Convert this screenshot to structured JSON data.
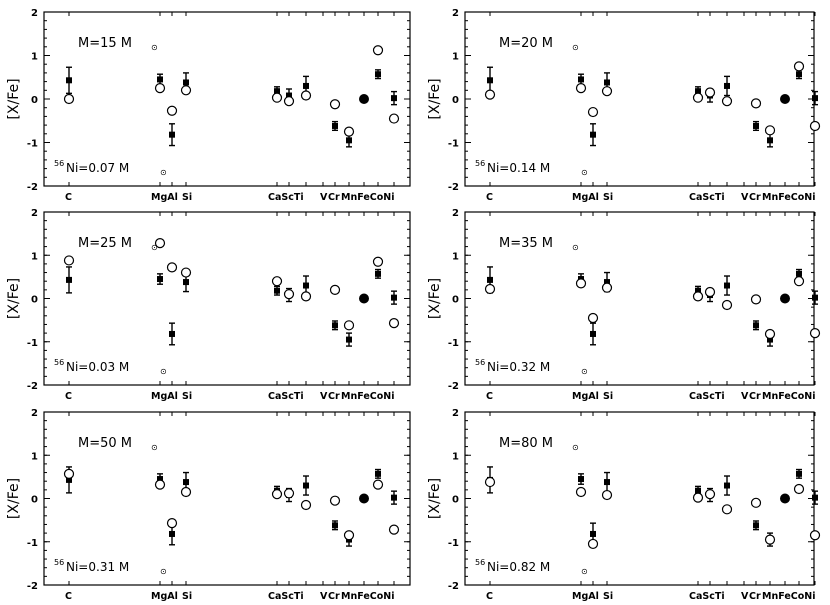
{
  "chart_data": [
    {
      "type": "scatter",
      "mass_label": "M=15 M",
      "ni_label": "Ni=0.07 M",
      "ni_superscript": "56",
      "sun_symbol": "⊙",
      "ylabel": "[X/Fe]",
      "ylim": [
        -2,
        2
      ],
      "yticks": [
        "2",
        "1",
        "0",
        "-1",
        "-2"
      ],
      "elements": [
        "C",
        "Mg",
        "Al",
        "Si",
        "Ca",
        "Sc",
        "Ti",
        "V",
        "Cr",
        "Mn",
        "Fe",
        "Co",
        "Ni"
      ],
      "element_labels": [
        "C",
        "MgAl",
        "Si",
        "CaScTi",
        "V",
        "Cr",
        "MnFeCoNi"
      ],
      "observed": [
        {
          "el": "C",
          "y": 0.43,
          "err": 0.3
        },
        {
          "el": "Mg",
          "y": 0.45,
          "err": 0.12
        },
        {
          "el": "Al",
          "y": -0.82,
          "err": 0.25
        },
        {
          "el": "Si",
          "y": 0.38,
          "err": 0.22
        },
        {
          "el": "Ca",
          "y": 0.18,
          "err": 0.1
        },
        {
          "el": "Sc",
          "y": 0.08,
          "err": 0.15
        },
        {
          "el": "Ti",
          "y": 0.3,
          "err": 0.22
        },
        {
          "el": "Cr",
          "y": -0.62,
          "err": 0.1
        },
        {
          "el": "Mn",
          "y": -0.95,
          "err": 0.15
        },
        {
          "el": "Co",
          "y": 0.57,
          "err": 0.1
        },
        {
          "el": "Ni",
          "y": 0.02,
          "err": 0.15
        }
      ],
      "model": [
        {
          "el": "C",
          "y": 0.0
        },
        {
          "el": "Mg",
          "y": 0.25
        },
        {
          "el": "Al",
          "y": -0.27
        },
        {
          "el": "Si",
          "y": 0.2
        },
        {
          "el": "Ca",
          "y": 0.03
        },
        {
          "el": "Sc",
          "y": -0.05
        },
        {
          "el": "Ti",
          "y": 0.08
        },
        {
          "el": "Cr",
          "y": -0.12
        },
        {
          "el": "Mn",
          "y": -0.75
        },
        {
          "el": "Co",
          "y": 1.12
        },
        {
          "el": "Ni",
          "y": -0.45
        }
      ],
      "reference": {
        "el": "Fe",
        "y": 0.0
      }
    },
    {
      "type": "scatter",
      "mass_label": "M=20 M",
      "ni_label": "Ni=0.14 M",
      "ni_superscript": "56",
      "sun_symbol": "⊙",
      "ylabel": "[X/Fe]",
      "ylim": [
        -2,
        2
      ],
      "yticks": [
        "2",
        "1",
        "0",
        "-1",
        "-2"
      ],
      "elements": [
        "C",
        "Mg",
        "Al",
        "Si",
        "Ca",
        "Sc",
        "Ti",
        "V",
        "Cr",
        "Mn",
        "Fe",
        "Co",
        "Ni"
      ],
      "element_labels": [
        "C",
        "MgAl",
        "Si",
        "CaScTi",
        "V",
        "Cr",
        "MnFeCoNi"
      ],
      "observed": [
        {
          "el": "C",
          "y": 0.43,
          "err": 0.3
        },
        {
          "el": "Mg",
          "y": 0.45,
          "err": 0.12
        },
        {
          "el": "Al",
          "y": -0.82,
          "err": 0.25
        },
        {
          "el": "Si",
          "y": 0.38,
          "err": 0.22
        },
        {
          "el": "Ca",
          "y": 0.18,
          "err": 0.1
        },
        {
          "el": "Sc",
          "y": 0.08,
          "err": 0.15
        },
        {
          "el": "Ti",
          "y": 0.3,
          "err": 0.22
        },
        {
          "el": "Cr",
          "y": -0.62,
          "err": 0.1
        },
        {
          "el": "Mn",
          "y": -0.95,
          "err": 0.15
        },
        {
          "el": "Co",
          "y": 0.57,
          "err": 0.1
        },
        {
          "el": "Ni",
          "y": 0.02,
          "err": 0.15
        }
      ],
      "model": [
        {
          "el": "C",
          "y": 0.1
        },
        {
          "el": "Mg",
          "y": 0.25
        },
        {
          "el": "Al",
          "y": -0.3
        },
        {
          "el": "Si",
          "y": 0.18
        },
        {
          "el": "Ca",
          "y": 0.03
        },
        {
          "el": "Sc",
          "y": 0.15
        },
        {
          "el": "Ti",
          "y": -0.05
        },
        {
          "el": "Cr",
          "y": -0.1
        },
        {
          "el": "Mn",
          "y": -0.72
        },
        {
          "el": "Co",
          "y": 0.75
        },
        {
          "el": "Ni",
          "y": -0.62
        }
      ],
      "reference": {
        "el": "Fe",
        "y": 0.0
      }
    },
    {
      "type": "scatter",
      "mass_label": "M=25 M",
      "ni_label": "Ni=0.03 M",
      "ni_superscript": "56",
      "sun_symbol": "⊙",
      "ylabel": "[X/Fe]",
      "ylim": [
        -2,
        2
      ],
      "yticks": [
        "2",
        "1",
        "0",
        "-1",
        "-2"
      ],
      "elements": [
        "C",
        "Mg",
        "Al",
        "Si",
        "Ca",
        "Sc",
        "Ti",
        "V",
        "Cr",
        "Mn",
        "Fe",
        "Co",
        "Ni"
      ],
      "element_labels": [
        "C",
        "MgAl",
        "Si",
        "CaScTi",
        "V",
        "Cr",
        "MnFeCoNi"
      ],
      "observed": [
        {
          "el": "C",
          "y": 0.43,
          "err": 0.3
        },
        {
          "el": "Mg",
          "y": 0.45,
          "err": 0.12
        },
        {
          "el": "Al",
          "y": -0.82,
          "err": 0.25
        },
        {
          "el": "Si",
          "y": 0.38,
          "err": 0.22
        },
        {
          "el": "Ca",
          "y": 0.18,
          "err": 0.1
        },
        {
          "el": "Sc",
          "y": 0.08,
          "err": 0.15
        },
        {
          "el": "Ti",
          "y": 0.3,
          "err": 0.22
        },
        {
          "el": "Cr",
          "y": -0.62,
          "err": 0.1
        },
        {
          "el": "Mn",
          "y": -0.95,
          "err": 0.15
        },
        {
          "el": "Co",
          "y": 0.57,
          "err": 0.1
        },
        {
          "el": "Ni",
          "y": 0.02,
          "err": 0.15
        }
      ],
      "model": [
        {
          "el": "C",
          "y": 0.88
        },
        {
          "el": "Mg",
          "y": 1.28
        },
        {
          "el": "Al",
          "y": 0.72
        },
        {
          "el": "Si",
          "y": 0.6
        },
        {
          "el": "Ca",
          "y": 0.4
        },
        {
          "el": "Sc",
          "y": 0.1
        },
        {
          "el": "Ti",
          "y": 0.05
        },
        {
          "el": "Cr",
          "y": 0.2
        },
        {
          "el": "Mn",
          "y": -0.62
        },
        {
          "el": "Co",
          "y": 0.85
        },
        {
          "el": "Ni",
          "y": -0.57
        }
      ],
      "reference": {
        "el": "Fe",
        "y": 0.0
      }
    },
    {
      "type": "scatter",
      "mass_label": "M=35 M",
      "ni_label": "Ni=0.32 M",
      "ni_superscript": "56",
      "sun_symbol": "⊙",
      "ylabel": "[X/Fe]",
      "ylim": [
        -2,
        2
      ],
      "yticks": [
        "2",
        "1",
        "0",
        "-1",
        "-2"
      ],
      "elements": [
        "C",
        "Mg",
        "Al",
        "Si",
        "Ca",
        "Sc",
        "Ti",
        "V",
        "Cr",
        "Mn",
        "Fe",
        "Co",
        "Ni"
      ],
      "element_labels": [
        "C",
        "MgAl",
        "Si",
        "CaScTi",
        "V",
        "Cr",
        "MnFeCoNi"
      ],
      "observed": [
        {
          "el": "C",
          "y": 0.43,
          "err": 0.3
        },
        {
          "el": "Mg",
          "y": 0.45,
          "err": 0.12
        },
        {
          "el": "Al",
          "y": -0.82,
          "err": 0.25
        },
        {
          "el": "Si",
          "y": 0.38,
          "err": 0.22
        },
        {
          "el": "Ca",
          "y": 0.18,
          "err": 0.1
        },
        {
          "el": "Sc",
          "y": 0.08,
          "err": 0.15
        },
        {
          "el": "Ti",
          "y": 0.3,
          "err": 0.22
        },
        {
          "el": "Cr",
          "y": -0.62,
          "err": 0.1
        },
        {
          "el": "Mn",
          "y": -0.95,
          "err": 0.15
        },
        {
          "el": "Co",
          "y": 0.57,
          "err": 0.1
        },
        {
          "el": "Ni",
          "y": 0.02,
          "err": 0.15
        }
      ],
      "model": [
        {
          "el": "C",
          "y": 0.22
        },
        {
          "el": "Mg",
          "y": 0.35
        },
        {
          "el": "Al",
          "y": -0.45
        },
        {
          "el": "Si",
          "y": 0.25
        },
        {
          "el": "Ca",
          "y": 0.05
        },
        {
          "el": "Sc",
          "y": 0.15
        },
        {
          "el": "Ti",
          "y": -0.15
        },
        {
          "el": "Cr",
          "y": -0.02
        },
        {
          "el": "Mn",
          "y": -0.82
        },
        {
          "el": "Co",
          "y": 0.4
        },
        {
          "el": "Ni",
          "y": -0.8
        }
      ],
      "reference": {
        "el": "Fe",
        "y": 0.0
      }
    },
    {
      "type": "scatter",
      "mass_label": "M=50 M",
      "ni_label": "Ni=0.31 M",
      "ni_superscript": "56",
      "sun_symbol": "⊙",
      "ylabel": "[X/Fe]",
      "ylim": [
        -2,
        2
      ],
      "yticks": [
        "2",
        "1",
        "0",
        "-1",
        "-2"
      ],
      "elements": [
        "C",
        "Mg",
        "Al",
        "Si",
        "Ca",
        "Sc",
        "Ti",
        "V",
        "Cr",
        "Mn",
        "Fe",
        "Co",
        "Ni"
      ],
      "element_labels": [
        "C",
        "MgAl",
        "Si",
        "CaScTi",
        "V",
        "Cr",
        "MnFeCoNi"
      ],
      "observed": [
        {
          "el": "C",
          "y": 0.43,
          "err": 0.3
        },
        {
          "el": "Mg",
          "y": 0.45,
          "err": 0.12
        },
        {
          "el": "Al",
          "y": -0.82,
          "err": 0.25
        },
        {
          "el": "Si",
          "y": 0.38,
          "err": 0.22
        },
        {
          "el": "Ca",
          "y": 0.18,
          "err": 0.1
        },
        {
          "el": "Sc",
          "y": 0.08,
          "err": 0.15
        },
        {
          "el": "Ti",
          "y": 0.3,
          "err": 0.22
        },
        {
          "el": "Cr",
          "y": -0.62,
          "err": 0.1
        },
        {
          "el": "Mn",
          "y": -0.95,
          "err": 0.15
        },
        {
          "el": "Co",
          "y": 0.57,
          "err": 0.1
        },
        {
          "el": "Ni",
          "y": 0.02,
          "err": 0.15
        }
      ],
      "model": [
        {
          "el": "C",
          "y": 0.57
        },
        {
          "el": "Mg",
          "y": 0.32
        },
        {
          "el": "Al",
          "y": -0.57
        },
        {
          "el": "Si",
          "y": 0.15
        },
        {
          "el": "Ca",
          "y": 0.1
        },
        {
          "el": "Sc",
          "y": 0.12
        },
        {
          "el": "Ti",
          "y": -0.15
        },
        {
          "el": "Cr",
          "y": -0.05
        },
        {
          "el": "Mn",
          "y": -0.85
        },
        {
          "el": "Co",
          "y": 0.32
        },
        {
          "el": "Ni",
          "y": -0.72
        }
      ],
      "reference": {
        "el": "Fe",
        "y": 0.0
      }
    },
    {
      "type": "scatter",
      "mass_label": "M=80 M",
      "ni_label": "Ni=0.82 M",
      "ni_superscript": "56",
      "sun_symbol": "⊙",
      "ylabel": "[X/Fe]",
      "ylim": [
        -2,
        2
      ],
      "yticks": [
        "2",
        "1",
        "0",
        "-1",
        "-2"
      ],
      "elements": [
        "C",
        "Mg",
        "Al",
        "Si",
        "Ca",
        "Sc",
        "Ti",
        "V",
        "Cr",
        "Mn",
        "Fe",
        "Co",
        "Ni"
      ],
      "element_labels": [
        "C",
        "MgAl",
        "Si",
        "CaScTi",
        "V",
        "Cr",
        "MnFeCoNi"
      ],
      "observed": [
        {
          "el": "C",
          "y": 0.43,
          "err": 0.3
        },
        {
          "el": "Mg",
          "y": 0.45,
          "err": 0.12
        },
        {
          "el": "Al",
          "y": -0.82,
          "err": 0.25
        },
        {
          "el": "Si",
          "y": 0.38,
          "err": 0.22
        },
        {
          "el": "Ca",
          "y": 0.18,
          "err": 0.1
        },
        {
          "el": "Sc",
          "y": 0.08,
          "err": 0.15
        },
        {
          "el": "Ti",
          "y": 0.3,
          "err": 0.22
        },
        {
          "el": "Cr",
          "y": -0.62,
          "err": 0.1
        },
        {
          "el": "Mn",
          "y": -0.95,
          "err": 0.15
        },
        {
          "el": "Co",
          "y": 0.57,
          "err": 0.1
        },
        {
          "el": "Ni",
          "y": 0.02,
          "err": 0.15
        }
      ],
      "model": [
        {
          "el": "C",
          "y": 0.38
        },
        {
          "el": "Mg",
          "y": 0.15
        },
        {
          "el": "Al",
          "y": -1.05
        },
        {
          "el": "Si",
          "y": 0.08
        },
        {
          "el": "Ca",
          "y": 0.02
        },
        {
          "el": "Sc",
          "y": 0.1
        },
        {
          "el": "Ti",
          "y": -0.25
        },
        {
          "el": "Cr",
          "y": -0.1
        },
        {
          "el": "Mn",
          "y": -0.95
        },
        {
          "el": "Co",
          "y": 0.22
        },
        {
          "el": "Ni",
          "y": -0.85
        }
      ],
      "reference": {
        "el": "Fe",
        "y": 0.0
      }
    }
  ]
}
